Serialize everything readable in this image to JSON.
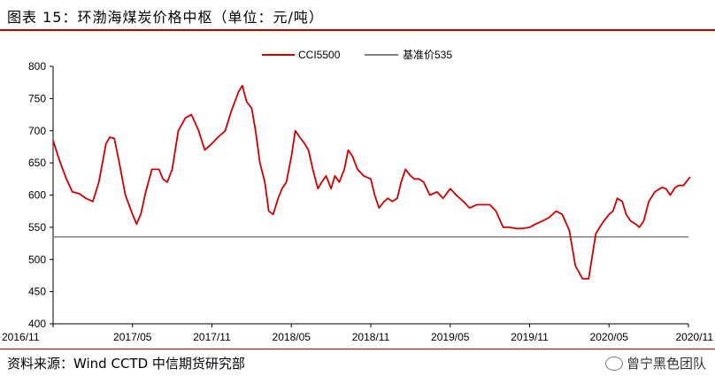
{
  "header": {
    "title": "图表 15：环渤海煤炭价格中枢（单位：元/吨）"
  },
  "footer": {
    "source": "资料来源：Wind CCTD 中信期货研究部",
    "watermark": "曾宁黑色团队"
  },
  "colors": {
    "series": "#cc0000",
    "baseline": "#808080",
    "rule": "#c00000"
  },
  "chart_data": {
    "type": "line",
    "ylim": [
      400,
      800
    ],
    "yticks": [
      400,
      450,
      500,
      550,
      600,
      650,
      700,
      750,
      800
    ],
    "xlim": [
      "2016-11",
      "2020-11"
    ],
    "xticks": [
      "2016/11",
      "2017/05",
      "2017/11",
      "2018/05",
      "2018/11",
      "2019/05",
      "2019/11",
      "2020/05",
      "2020/11"
    ],
    "legend_position": "top-center",
    "legend": [
      {
        "name": "CCI5500",
        "color": "#cc0000"
      },
      {
        "name": "基准价535",
        "color": "#808080"
      }
    ],
    "baseline_value": 535,
    "series": {
      "name": "CCI5500",
      "x": [
        "2016-11-01",
        "2016-11-15",
        "2016-12-01",
        "2016-12-15",
        "2017-01-01",
        "2017-01-15",
        "2017-02-01",
        "2017-02-15",
        "2017-03-01",
        "2017-03-10",
        "2017-03-20",
        "2017-04-01",
        "2017-04-15",
        "2017-05-01",
        "2017-05-10",
        "2017-05-20",
        "2017-06-01",
        "2017-06-15",
        "2017-07-01",
        "2017-07-10",
        "2017-07-20",
        "2017-08-01",
        "2017-08-15",
        "2017-09-01",
        "2017-09-15",
        "2017-10-01",
        "2017-10-15",
        "2017-11-01",
        "2017-11-15",
        "2017-12-01",
        "2017-12-15",
        "2018-01-01",
        "2018-01-10",
        "2018-01-20",
        "2018-02-01",
        "2018-02-10",
        "2018-02-20",
        "2018-03-01",
        "2018-03-10",
        "2018-03-20",
        "2018-04-01",
        "2018-04-10",
        "2018-04-20",
        "2018-05-01",
        "2018-05-10",
        "2018-05-20",
        "2018-06-01",
        "2018-06-10",
        "2018-06-20",
        "2018-07-01",
        "2018-07-10",
        "2018-07-20",
        "2018-08-01",
        "2018-08-10",
        "2018-08-20",
        "2018-09-01",
        "2018-09-10",
        "2018-09-20",
        "2018-10-01",
        "2018-10-15",
        "2018-11-01",
        "2018-11-10",
        "2018-11-20",
        "2018-12-01",
        "2018-12-10",
        "2018-12-20",
        "2019-01-01",
        "2019-01-10",
        "2019-01-20",
        "2019-02-01",
        "2019-02-10",
        "2019-02-20",
        "2019-03-01",
        "2019-03-15",
        "2019-04-01",
        "2019-04-15",
        "2019-05-01",
        "2019-05-15",
        "2019-06-01",
        "2019-06-15",
        "2019-07-01",
        "2019-07-15",
        "2019-08-01",
        "2019-08-15",
        "2019-09-01",
        "2019-09-15",
        "2019-10-01",
        "2019-10-15",
        "2019-11-01",
        "2019-11-15",
        "2019-12-01",
        "2019-12-15",
        "2020-01-01",
        "2020-01-15",
        "2020-02-01",
        "2020-02-15",
        "2020-03-01",
        "2020-03-15",
        "2020-04-01",
        "2020-04-10",
        "2020-04-20",
        "2020-05-01",
        "2020-05-10",
        "2020-05-20",
        "2020-06-01",
        "2020-06-10",
        "2020-06-20",
        "2020-07-01",
        "2020-07-10",
        "2020-07-20",
        "2020-08-01",
        "2020-08-15",
        "2020-09-01",
        "2020-09-10",
        "2020-09-20",
        "2020-10-01",
        "2020-10-10",
        "2020-10-20",
        "2020-11-01",
        "2020-11-05"
      ],
      "y": [
        685,
        655,
        625,
        605,
        602,
        595,
        590,
        620,
        680,
        690,
        688,
        650,
        600,
        570,
        555,
        570,
        605,
        640,
        640,
        625,
        620,
        640,
        700,
        720,
        725,
        700,
        670,
        680,
        690,
        700,
        730,
        760,
        770,
        745,
        735,
        700,
        650,
        620,
        575,
        570,
        595,
        610,
        620,
        660,
        700,
        690,
        680,
        670,
        640,
        610,
        620,
        630,
        610,
        630,
        620,
        640,
        670,
        660,
        640,
        630,
        625,
        600,
        580,
        590,
        595,
        590,
        595,
        620,
        640,
        630,
        625,
        625,
        620,
        600,
        605,
        595,
        610,
        600,
        590,
        580,
        585,
        585,
        585,
        575,
        550,
        550,
        548,
        548,
        550,
        555,
        560,
        565,
        575,
        570,
        545,
        490,
        470,
        470,
        540,
        550,
        560,
        570,
        575,
        595,
        590,
        570,
        560,
        555,
        550,
        560,
        590,
        605,
        612,
        610,
        600,
        612,
        615,
        615,
        625,
        628
      ]
    }
  }
}
